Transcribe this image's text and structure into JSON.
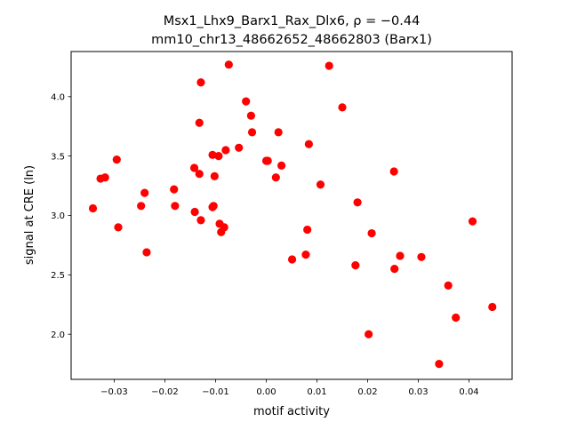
{
  "chart_data": {
    "type": "scatter",
    "title_line1": "Msx1_Lhx9_Barx1_Rax_Dlx6, ρ = −0.44",
    "title_line2": "mm10_chr13_48662652_48662803 (Barx1)",
    "xlabel": "motif activity",
    "ylabel": "signal at CRE (ln)",
    "xlim": [
      -0.0385,
      0.0485
    ],
    "ylim": [
      1.62,
      4.38
    ],
    "xticks": [
      -0.03,
      -0.02,
      -0.01,
      0.0,
      0.01,
      0.02,
      0.03,
      0.04
    ],
    "xtick_labels": [
      "−0.03",
      "−0.02",
      "−0.01",
      "0.00",
      "0.01",
      "0.02",
      "0.03",
      "0.04"
    ],
    "yticks": [
      2.0,
      2.5,
      3.0,
      3.5,
      4.0
    ],
    "ytick_labels": [
      "2.0",
      "2.5",
      "3.0",
      "3.5",
      "4.0"
    ],
    "grid": false,
    "marker_color": "#ff0000",
    "points": [
      {
        "x": -0.0342,
        "y": 3.06
      },
      {
        "x": -0.0327,
        "y": 3.31
      },
      {
        "x": -0.0318,
        "y": 3.32
      },
      {
        "x": -0.0295,
        "y": 3.47
      },
      {
        "x": -0.0292,
        "y": 2.9
      },
      {
        "x": -0.0247,
        "y": 3.08
      },
      {
        "x": -0.024,
        "y": 3.19
      },
      {
        "x": -0.0236,
        "y": 2.69
      },
      {
        "x": -0.0182,
        "y": 3.22
      },
      {
        "x": -0.018,
        "y": 3.08
      },
      {
        "x": -0.0142,
        "y": 3.4
      },
      {
        "x": -0.0141,
        "y": 3.03
      },
      {
        "x": -0.0132,
        "y": 3.35
      },
      {
        "x": -0.0132,
        "y": 3.78
      },
      {
        "x": -0.0129,
        "y": 4.12
      },
      {
        "x": -0.0129,
        "y": 2.96
      },
      {
        "x": -0.0106,
        "y": 3.51
      },
      {
        "x": -0.0106,
        "y": 3.07
      },
      {
        "x": -0.0104,
        "y": 3.08
      },
      {
        "x": -0.0102,
        "y": 3.33
      },
      {
        "x": -0.0094,
        "y": 3.5
      },
      {
        "x": -0.0092,
        "y": 2.93
      },
      {
        "x": -0.0089,
        "y": 2.86
      },
      {
        "x": -0.0083,
        "y": 2.9
      },
      {
        "x": -0.008,
        "y": 3.55
      },
      {
        "x": -0.0074,
        "y": 4.27
      },
      {
        "x": -0.0054,
        "y": 3.57
      },
      {
        "x": -0.004,
        "y": 3.96
      },
      {
        "x": -0.003,
        "y": 3.84
      },
      {
        "x": -0.0028,
        "y": 3.7
      },
      {
        "x": 0.0,
        "y": 3.46
      },
      {
        "x": 0.0003,
        "y": 3.46
      },
      {
        "x": 0.0019,
        "y": 3.32
      },
      {
        "x": 0.0024,
        "y": 3.7
      },
      {
        "x": 0.003,
        "y": 3.42
      },
      {
        "x": 0.0051,
        "y": 2.63
      },
      {
        "x": 0.0078,
        "y": 2.67
      },
      {
        "x": 0.0081,
        "y": 2.88
      },
      {
        "x": 0.0084,
        "y": 3.6
      },
      {
        "x": 0.0107,
        "y": 3.26
      },
      {
        "x": 0.0124,
        "y": 4.26
      },
      {
        "x": 0.015,
        "y": 3.91
      },
      {
        "x": 0.0176,
        "y": 2.58
      },
      {
        "x": 0.018,
        "y": 3.11
      },
      {
        "x": 0.0202,
        "y": 2.0
      },
      {
        "x": 0.0208,
        "y": 2.85
      },
      {
        "x": 0.0252,
        "y": 3.37
      },
      {
        "x": 0.0253,
        "y": 2.55
      },
      {
        "x": 0.0264,
        "y": 2.66
      },
      {
        "x": 0.0306,
        "y": 2.65
      },
      {
        "x": 0.0341,
        "y": 1.75
      },
      {
        "x": 0.0359,
        "y": 2.41
      },
      {
        "x": 0.0374,
        "y": 2.14
      },
      {
        "x": 0.0407,
        "y": 2.95
      },
      {
        "x": 0.0446,
        "y": 2.23
      }
    ]
  }
}
